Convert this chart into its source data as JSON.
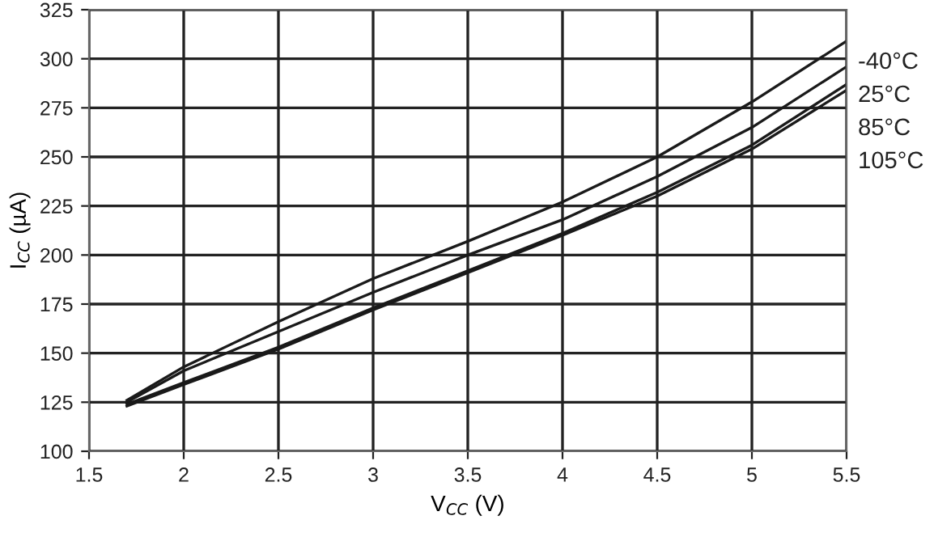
{
  "chart_data": {
    "type": "line",
    "xlabel": "V$_{CC}$ (V)",
    "ylabel": "I$_{CC}$ (µA)",
    "x": [
      1.7,
      2,
      2.5,
      3,
      3.5,
      4,
      4.5,
      5,
      5.5
    ],
    "series": [
      {
        "name": "-40°C",
        "color": "#1a1a1a",
        "values": [
          126,
          143,
          166,
          188,
          207,
          227,
          250,
          278,
          309
        ]
      },
      {
        "name": "25°C",
        "color": "#1a1a1a",
        "values": [
          125,
          141,
          161,
          181,
          200,
          218,
          240,
          265,
          296
        ]
      },
      {
        "name": "85°C",
        "color": "#1a1a1a",
        "values": [
          124,
          135,
          153,
          173,
          192,
          211,
          232,
          256,
          287
        ]
      },
      {
        "name": "105°C",
        "color": "#1a1a1a",
        "values": [
          123,
          134,
          152,
          172,
          191,
          210,
          230,
          254,
          284
        ]
      }
    ],
    "xlim": [
      1.5,
      5.5
    ],
    "xticks": [
      1.5,
      2,
      2.5,
      3,
      3.5,
      4,
      4.5,
      5,
      5.5
    ],
    "ylim": [
      100,
      325
    ],
    "yticks": [
      100,
      125,
      150,
      175,
      200,
      225,
      250,
      275,
      300,
      325
    ],
    "grid": true,
    "marker": "none",
    "line_style": "solid"
  }
}
